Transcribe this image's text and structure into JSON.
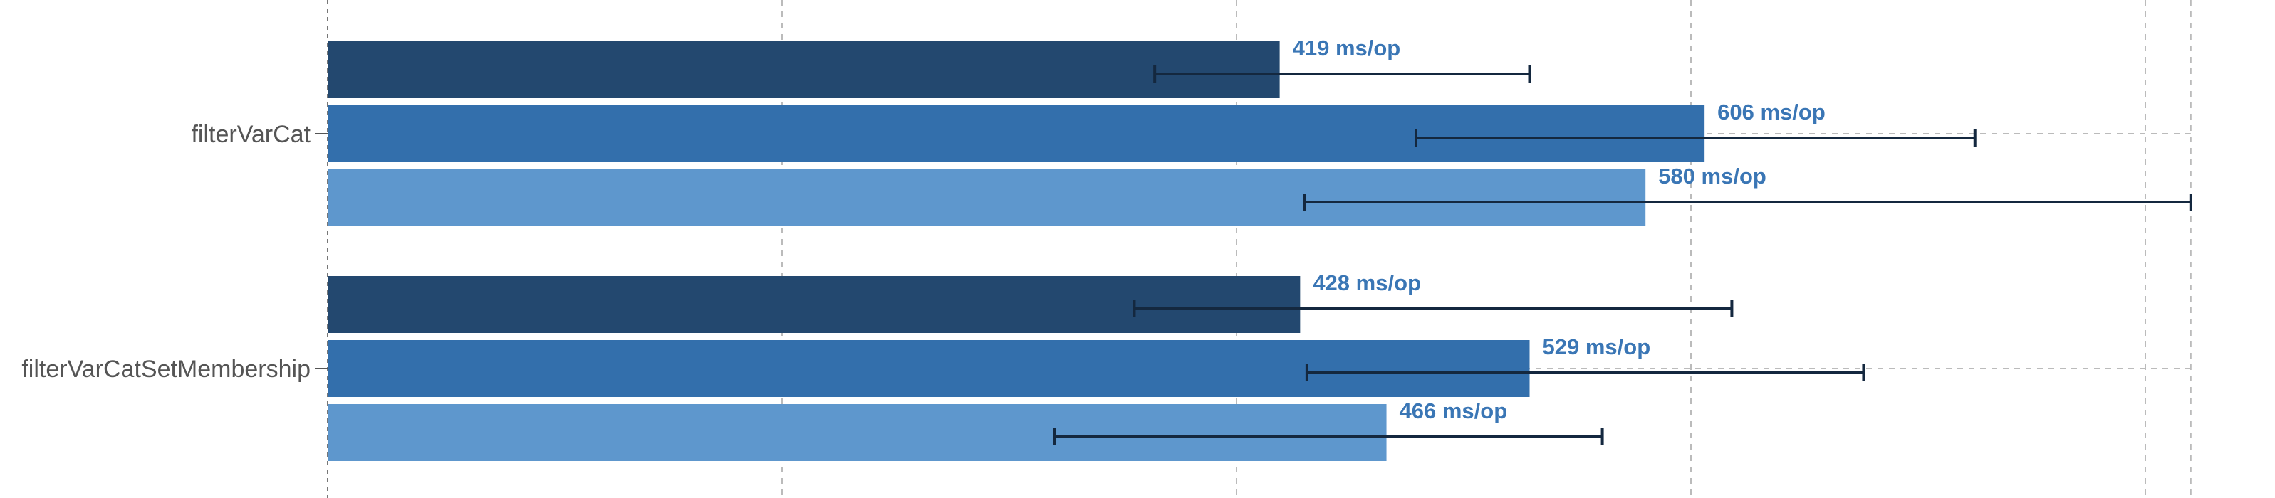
{
  "chart_data": {
    "type": "bar",
    "orientation": "horizontal",
    "grid": true,
    "x_visible_max": 2050,
    "categories": [
      "filterVarCat",
      "filterVarCatSetMembership"
    ],
    "series": [
      {
        "color": "#23486f",
        "values": [
          419,
          428
        ],
        "labels": [
          "419 ms/op",
          "428 ms/op"
        ],
        "error_low": [
          364,
          355
        ],
        "error_high": [
          529,
          618
        ]
      },
      {
        "color": "#336fac",
        "values": [
          606,
          529
        ],
        "labels": [
          "606 ms/op",
          "529 ms/op"
        ],
        "error_low": [
          479,
          431
        ],
        "error_high": [
          725,
          676
        ]
      },
      {
        "color": "#5e97cd",
        "values": [
          580,
          466
        ],
        "labels": [
          "580 ms/op",
          "466 ms/op"
        ],
        "error_low": [
          430,
          320
        ],
        "error_high": [
          820,
          561
        ]
      }
    ],
    "gridline_values": [
      200,
      400,
      600,
      800,
      820
    ],
    "errorbar_color": "#14283f"
  }
}
